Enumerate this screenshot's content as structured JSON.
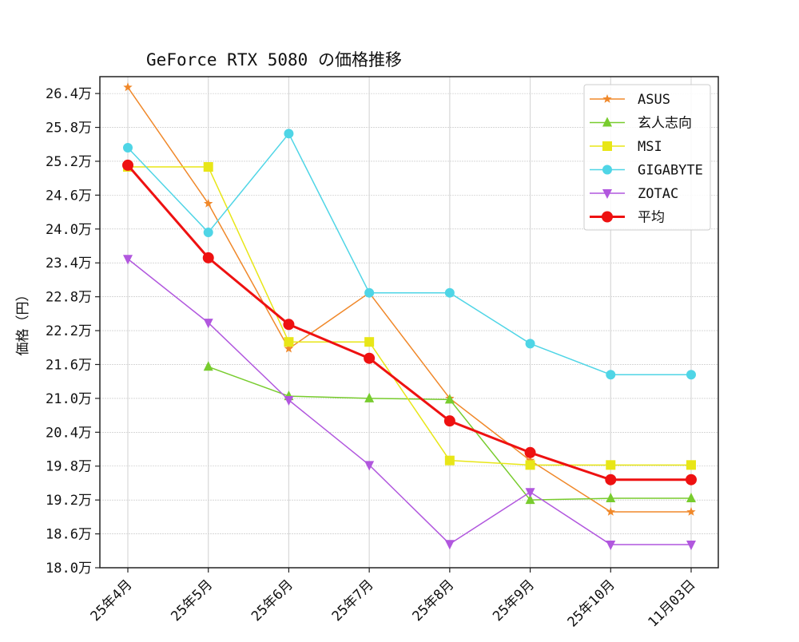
{
  "chart_data": {
    "type": "line",
    "title": "GeForce RTX 5080 の価格推移",
    "xlabel": "",
    "ylabel": "価格（円）",
    "ylim": [
      180000,
      268000
    ],
    "y_tick_values": [
      180000,
      186000,
      192000,
      198000,
      204000,
      210000,
      216000,
      222000,
      228000,
      234000,
      240000,
      246000,
      252000,
      258000,
      264000
    ],
    "y_tick_labels": [
      "18.0万",
      "18.6万",
      "19.2万",
      "19.8万",
      "20.4万",
      "21.0万",
      "21.6万",
      "22.2万",
      "22.8万",
      "23.4万",
      "24.0万",
      "24.6万",
      "25.2万",
      "25.8万",
      "26.4万"
    ],
    "categories": [
      "25年4月",
      "25年5月",
      "25年6月",
      "25年7月",
      "25年8月",
      "25年9月",
      "25年10月",
      "11月03日"
    ],
    "grid": true,
    "legend_position": "upper right",
    "series": [
      {
        "name": "ASUS",
        "color": "#f0882a",
        "marker": "star",
        "line_width": 1.5,
        "values": [
          265100,
          244500,
          218800,
          228700,
          210000,
          199000,
          189900,
          189900
        ]
      },
      {
        "name": "玄人志向",
        "color": "#78cc2e",
        "marker": "triangle-up",
        "line_width": 1.5,
        "values": [
          null,
          215600,
          210400,
          210000,
          209800,
          192000,
          192300,
          192300
        ]
      },
      {
        "name": "MSI",
        "color": "#e8e617",
        "marker": "square",
        "line_width": 1.5,
        "values": [
          251000,
          251000,
          220000,
          220000,
          199000,
          198200,
          198200,
          198200
        ]
      },
      {
        "name": "GIGABYTE",
        "color": "#4fd5e6",
        "marker": "circle",
        "line_width": 1.5,
        "values": [
          254400,
          239400,
          256900,
          228700,
          228700,
          219700,
          214200,
          214200
        ]
      },
      {
        "name": "ZOTAC",
        "color": "#b157de",
        "marker": "triangle-down",
        "line_width": 1.5,
        "values": [
          234700,
          223400,
          209700,
          198200,
          184200,
          193400,
          184100,
          184100
        ]
      },
      {
        "name": "平均",
        "color": "#ee1111",
        "marker": "circle",
        "line_width": 3,
        "values": [
          251300,
          234900,
          223100,
          217100,
          206000,
          200400,
          195600,
          195600
        ]
      }
    ]
  }
}
